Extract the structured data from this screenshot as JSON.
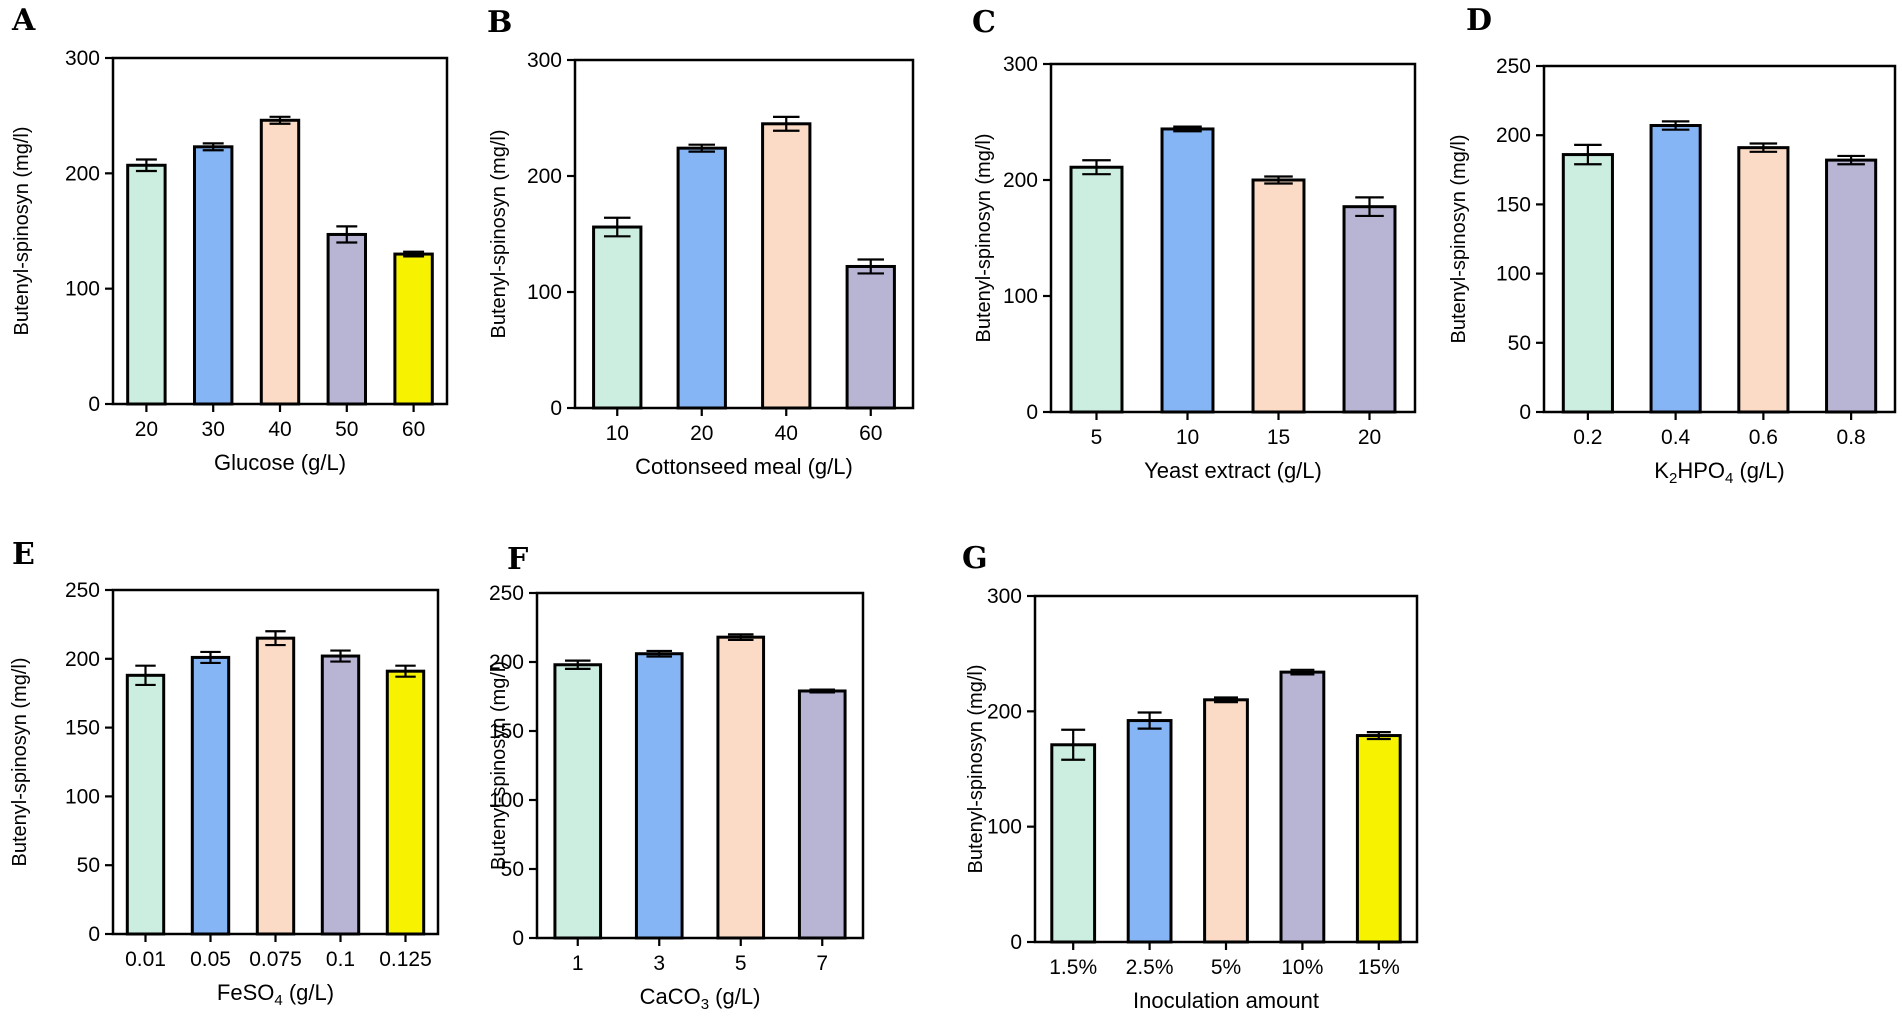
{
  "colors": {
    "teal": "#cbeee0",
    "blue": "#86b5f5",
    "peach": "#fbdbc5",
    "lavender": "#b8b4d3",
    "yellow": "#f6f200"
  },
  "chart_data": [
    {
      "type": "bar",
      "panel_label": "A",
      "ylabel": "Butenyl-spinosyn (mg/l)",
      "xlabel_parts": [
        {
          "t": "Glucose  (g/L)"
        }
      ],
      "categories": [
        "20",
        "30",
        "40",
        "50",
        "60"
      ],
      "values": [
        207,
        223,
        246,
        147,
        130
      ],
      "errors": [
        5,
        3,
        3,
        7,
        2
      ],
      "bar_colors": [
        "teal",
        "blue",
        "peach",
        "lavender",
        "yellow"
      ],
      "ylim": [
        0,
        300
      ],
      "yticks": [
        0,
        100,
        200,
        300
      ]
    },
    {
      "type": "bar",
      "panel_label": "B",
      "ylabel": "Butenyl-spinosyn (mg/l)",
      "xlabel_parts": [
        {
          "t": "Cottonseed meal  (g/L)"
        }
      ],
      "categories": [
        "10",
        "20",
        "40",
        "60"
      ],
      "values": [
        156,
        224,
        245,
        122
      ],
      "errors": [
        8,
        3,
        6,
        6
      ],
      "bar_colors": [
        "teal",
        "blue",
        "peach",
        "lavender"
      ],
      "ylim": [
        0,
        300
      ],
      "yticks": [
        0,
        100,
        200,
        300
      ]
    },
    {
      "type": "bar",
      "panel_label": "C",
      "ylabel": "Butenyl-spinosyn (mg/l)",
      "xlabel_parts": [
        {
          "t": "Yeast extract (g/L)"
        }
      ],
      "categories": [
        "5",
        "10",
        "15",
        "20"
      ],
      "values": [
        211,
        244,
        200,
        177
      ],
      "errors": [
        6,
        2,
        3,
        8
      ],
      "bar_colors": [
        "teal",
        "blue",
        "peach",
        "lavender"
      ],
      "ylim": [
        0,
        300
      ],
      "yticks": [
        0,
        100,
        200,
        300
      ]
    },
    {
      "type": "bar",
      "panel_label": "D",
      "ylabel": "Butenyl-spinosyn (mg/l)",
      "xlabel_parts": [
        {
          "t": "K"
        },
        {
          "t": "2",
          "sub": true
        },
        {
          "t": "HPO"
        },
        {
          "t": "4",
          "sub": true
        },
        {
          "t": " (g/L)"
        }
      ],
      "categories": [
        "0.2",
        "0.4",
        "0.6",
        "0.8"
      ],
      "values": [
        186,
        207,
        191,
        182
      ],
      "errors": [
        7,
        3,
        3,
        3
      ],
      "bar_colors": [
        "teal",
        "blue",
        "peach",
        "lavender"
      ],
      "ylim": [
        0,
        250
      ],
      "yticks": [
        0,
        50,
        100,
        150,
        200,
        250
      ]
    },
    {
      "type": "bar",
      "panel_label": "E",
      "ylabel": "Butenyl-spinosyn (mg/l)",
      "xlabel_parts": [
        {
          "t": "FeSO"
        },
        {
          "t": "4",
          "sub": true
        },
        {
          "t": " (g/L)"
        }
      ],
      "categories": [
        "0.01",
        "0.05",
        "0.075",
        "0.1",
        "0.125"
      ],
      "values": [
        188,
        201,
        215,
        202,
        191
      ],
      "errors": [
        7,
        4,
        5,
        4,
        4
      ],
      "bar_colors": [
        "teal",
        "blue",
        "peach",
        "lavender",
        "yellow"
      ],
      "ylim": [
        0,
        250
      ],
      "yticks": [
        0,
        50,
        100,
        150,
        200,
        250
      ]
    },
    {
      "type": "bar",
      "panel_label": "F",
      "ylabel": "Butenyl-spinosyn (mg/l)",
      "xlabel_parts": [
        {
          "t": "CaCO"
        },
        {
          "t": "3",
          "sub": true
        },
        {
          "t": " (g/L)"
        }
      ],
      "categories": [
        "1",
        "3",
        "5",
        "7"
      ],
      "values": [
        198,
        206,
        218,
        179
      ],
      "errors": [
        3,
        2,
        2,
        1
      ],
      "bar_colors": [
        "teal",
        "blue",
        "peach",
        "lavender"
      ],
      "ylim": [
        0,
        250
      ],
      "yticks": [
        0,
        50,
        100,
        150,
        200,
        250
      ]
    },
    {
      "type": "bar",
      "panel_label": "G",
      "ylabel": "Butenyl-spinosyn (mg/l)",
      "xlabel_parts": [
        {
          "t": "Inoculation amount"
        }
      ],
      "categories": [
        "1.5%",
        "2.5%",
        "5%",
        "10%",
        "15%"
      ],
      "values": [
        171,
        192,
        210,
        234,
        179
      ],
      "errors": [
        13,
        7,
        2,
        2,
        3
      ],
      "bar_colors": [
        "teal",
        "blue",
        "peach",
        "lavender",
        "yellow"
      ],
      "ylim": [
        0,
        300
      ],
      "yticks": [
        0,
        100,
        200,
        300
      ]
    }
  ]
}
